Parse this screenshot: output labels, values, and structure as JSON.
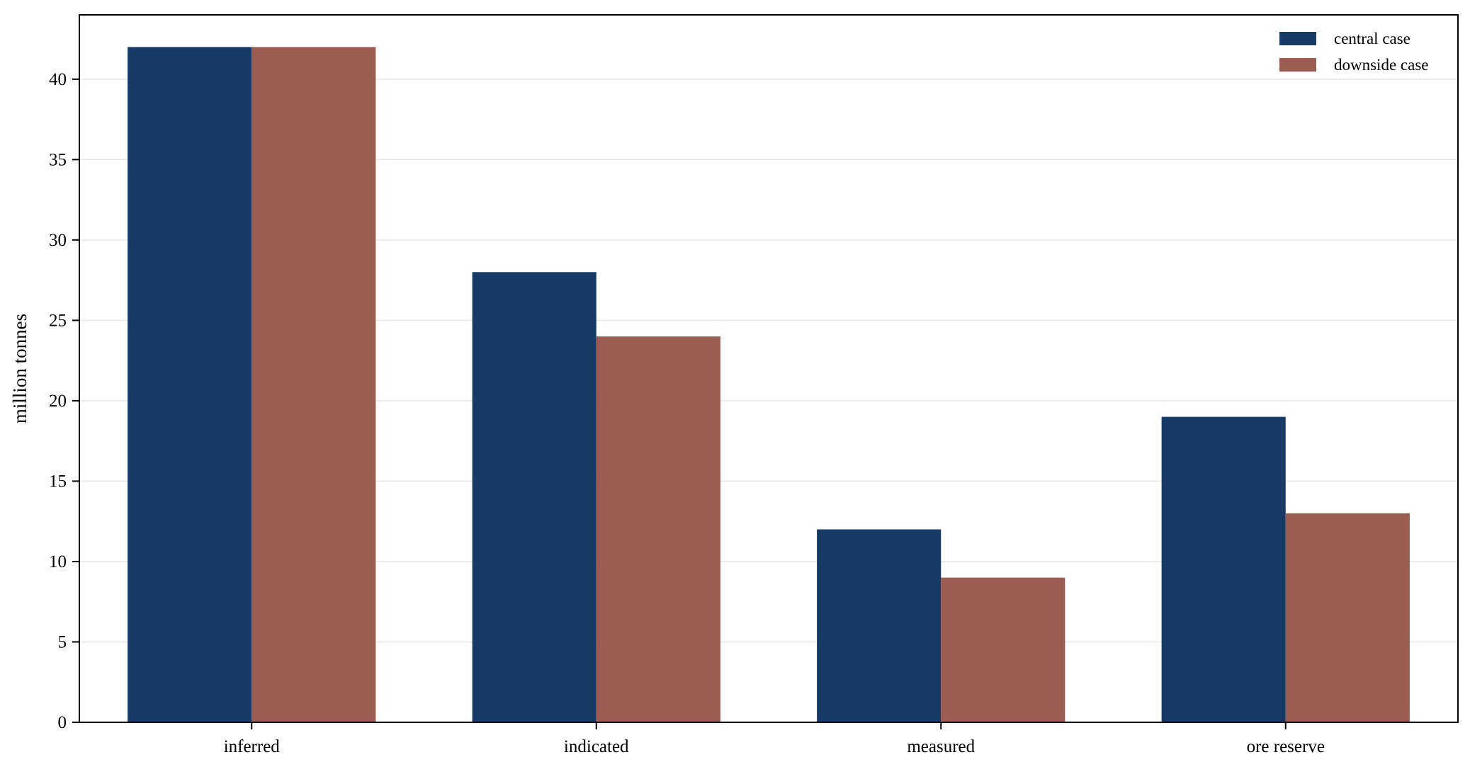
{
  "chart_data": {
    "type": "bar",
    "title": "",
    "xlabel": "",
    "ylabel": "million tonnes",
    "categories": [
      "inferred",
      "indicated",
      "measured",
      "ore reserve"
    ],
    "series": [
      {
        "name": "central case",
        "values": [
          42,
          28,
          12,
          19
        ],
        "color": "#183a66"
      },
      {
        "name": "downside case",
        "values": [
          42,
          24,
          9,
          13
        ],
        "color": "#9b5d52"
      }
    ],
    "ylim": [
      0,
      44
    ],
    "yticks": [
      0,
      5,
      10,
      15,
      20,
      25,
      30,
      35,
      40
    ],
    "grid": "horizontal",
    "legend_position": "top-right"
  }
}
